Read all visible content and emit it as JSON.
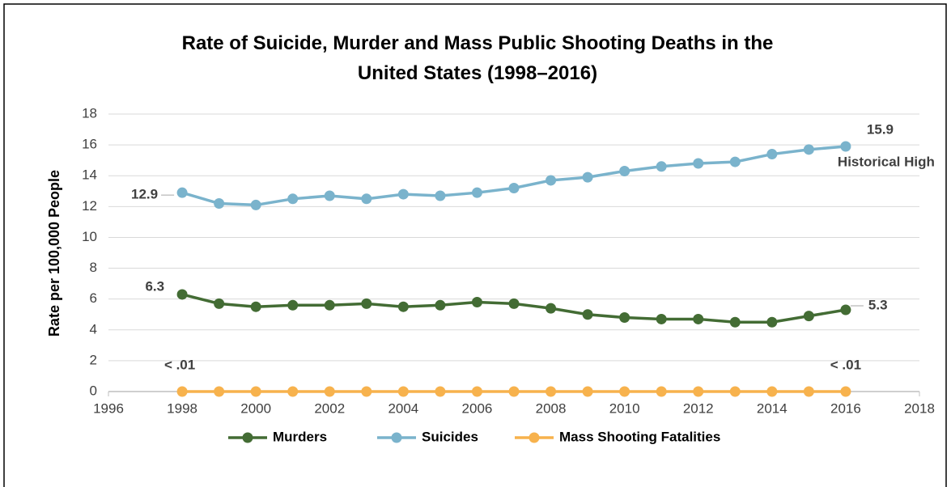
{
  "chart_data": {
    "type": "line",
    "title": "Rate of Suicide, Murder and Mass Public Shooting Deaths in the United States (1998–2016)",
    "y_label": "Rate per 100,000 People",
    "x": [
      1998,
      1999,
      2000,
      2001,
      2002,
      2003,
      2004,
      2005,
      2006,
      2007,
      2008,
      2009,
      2010,
      2011,
      2012,
      2013,
      2014,
      2015,
      2016
    ],
    "series": [
      {
        "name": "Murders",
        "color": "#436c34",
        "values": [
          6.3,
          5.7,
          5.5,
          5.6,
          5.6,
          5.7,
          5.5,
          5.6,
          5.8,
          5.7,
          5.4,
          5.0,
          4.8,
          4.7,
          4.7,
          4.5,
          4.5,
          4.9,
          5.3
        ]
      },
      {
        "name": "Suicides",
        "color": "#7ab3cc",
        "values": [
          12.9,
          12.2,
          12.1,
          12.5,
          12.7,
          12.5,
          12.8,
          12.7,
          12.9,
          13.2,
          13.7,
          13.9,
          14.3,
          14.6,
          14.8,
          14.9,
          15.4,
          15.7,
          15.9
        ]
      },
      {
        "name": "Mass Shooting Fatalities",
        "color": "#f7b24d",
        "values": [
          0,
          0,
          0,
          0,
          0,
          0,
          0,
          0,
          0,
          0,
          0,
          0,
          0,
          0,
          0,
          0,
          0,
          0,
          0
        ]
      }
    ],
    "annotations": [
      "< .01",
      "< .01",
      "Historical High"
    ],
    "xlim": [
      1996,
      2018
    ],
    "xticks": [
      1996,
      1998,
      2000,
      2002,
      2004,
      2006,
      2008,
      2010,
      2012,
      2014,
      2016,
      2018
    ],
    "ylim": [
      0,
      18
    ],
    "yticks": [
      0,
      2,
      4,
      6,
      8,
      10,
      12,
      14,
      16,
      18
    ],
    "grid": true,
    "legend": "bottom"
  }
}
